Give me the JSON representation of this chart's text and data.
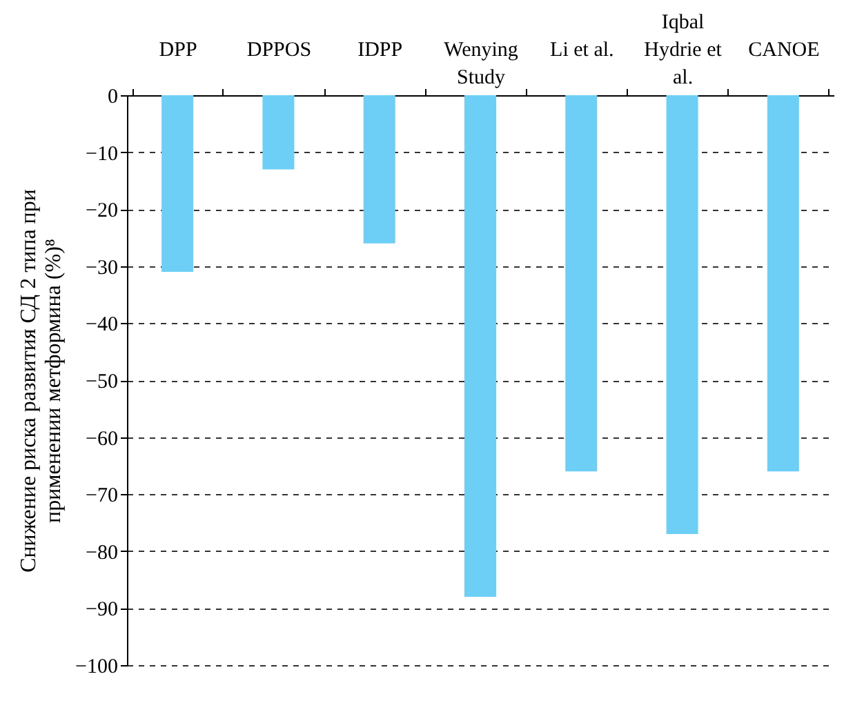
{
  "chart_data": {
    "type": "bar",
    "ylabel": "Снижение риска развития СД 2 типа при применении метформина (%)⁸",
    "categories": [
      "DPP",
      "DPPOS",
      "IDPP",
      "Wenying Study",
      "Li et al.",
      "Iqbal Hydrie et al.",
      "CANOE"
    ],
    "values": [
      -31,
      -13,
      -26,
      -88,
      -66,
      -77,
      -66
    ],
    "color": "#6dcff6",
    "ylim": [
      -100,
      0
    ],
    "yticks": [
      -100,
      -90,
      -80,
      -70,
      -60,
      -50,
      -40,
      -30,
      -20,
      -10,
      0
    ],
    "grid": "y"
  }
}
